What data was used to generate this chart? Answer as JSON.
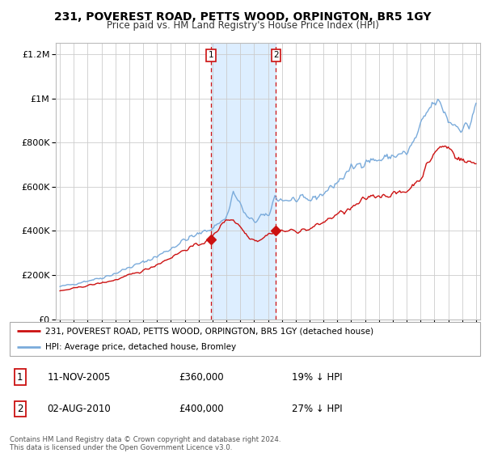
{
  "title": "231, POVEREST ROAD, PETTS WOOD, ORPINGTON, BR5 1GY",
  "subtitle": "Price paid vs. HM Land Registry's House Price Index (HPI)",
  "legend_line1": "231, POVEREST ROAD, PETTS WOOD, ORPINGTON, BR5 1GY (detached house)",
  "legend_line2": "HPI: Average price, detached house, Bromley",
  "transaction1_date": "11-NOV-2005",
  "transaction1_price": "£360,000",
  "transaction1_hpi": "19% ↓ HPI",
  "transaction2_date": "02-AUG-2010",
  "transaction2_price": "£400,000",
  "transaction2_hpi": "27% ↓ HPI",
  "footer": "Contains HM Land Registry data © Crown copyright and database right 2024.\nThis data is licensed under the Open Government Licence v3.0.",
  "hpi_color": "#7aabdb",
  "price_color": "#cc1111",
  "background_color": "#ffffff",
  "plot_bg_color": "#ffffff",
  "grid_color": "#cccccc",
  "shade_color": "#ddeeff",
  "transaction1_x": 2005.87,
  "transaction2_x": 2010.58,
  "ylim_min": 0,
  "ylim_max": 1250000,
  "xlim_min": 1994.7,
  "xlim_max": 2025.3
}
